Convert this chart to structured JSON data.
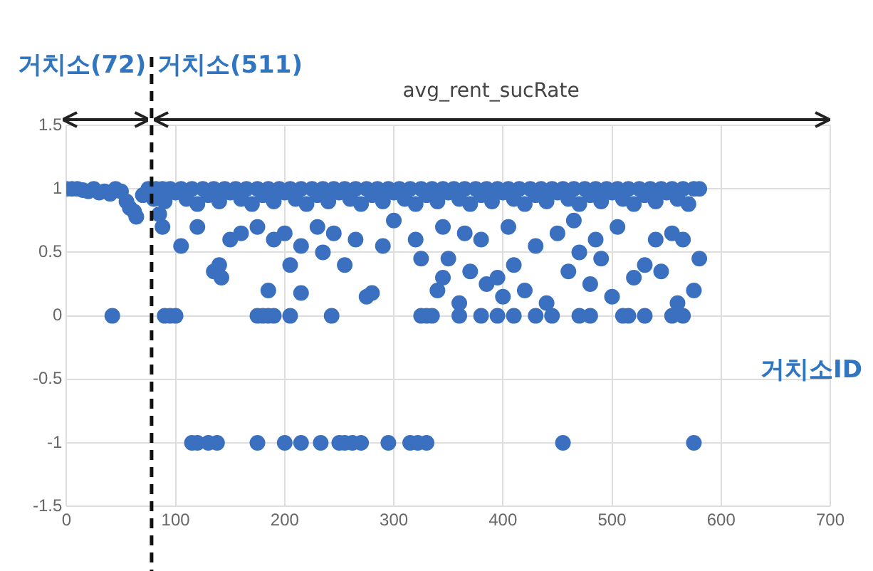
{
  "chart_data": {
    "type": "scatter",
    "xlabel": "거치소ID",
    "annotations": [
      "거치소(72)",
      "거치소(511)",
      "avg_rent_sucRate"
    ],
    "x": [
      0,
      5,
      10,
      15,
      20,
      25,
      30,
      35,
      40,
      45,
      50,
      55,
      58,
      62,
      64,
      70,
      75,
      42,
      80,
      82,
      85,
      88,
      90,
      95,
      100,
      105,
      110,
      115,
      120,
      125,
      130,
      135,
      140,
      145,
      150,
      155,
      160,
      165,
      170,
      175,
      180,
      185,
      190,
      195,
      200,
      205,
      210,
      215,
      220,
      225,
      230,
      235,
      240,
      245,
      250,
      255,
      260,
      265,
      270,
      275,
      280,
      285,
      290,
      295,
      300,
      305,
      310,
      315,
      320,
      325,
      330,
      335,
      340,
      345,
      350,
      355,
      360,
      365,
      370,
      375,
      380,
      385,
      390,
      395,
      400,
      405,
      410,
      415,
      420,
      425,
      430,
      435,
      440,
      445,
      450,
      455,
      460,
      465,
      470,
      475,
      480,
      485,
      490,
      495,
      500,
      505,
      510,
      515,
      520,
      525,
      530,
      535,
      540,
      545,
      550,
      555,
      560,
      565,
      570,
      575,
      580,
      90,
      95,
      100,
      175,
      180,
      185,
      190,
      205,
      243,
      325,
      330,
      335,
      360,
      380,
      395,
      410,
      430,
      445,
      470,
      480,
      510,
      515,
      530,
      555,
      565,
      115,
      120,
      130,
      138,
      175,
      200,
      215,
      233,
      250,
      255,
      262,
      270,
      295,
      315,
      322,
      330,
      455,
      575,
      135,
      140,
      142,
      185,
      205,
      215,
      235,
      255,
      275,
      280,
      325,
      340,
      345,
      350,
      360,
      370,
      385,
      395,
      400,
      410,
      420,
      440,
      460,
      470,
      480,
      490,
      500,
      520,
      530,
      545,
      560,
      575,
      580,
      88,
      105,
      120,
      150,
      160,
      175,
      190,
      200,
      215,
      230,
      245,
      265,
      290,
      300,
      320,
      345,
      365,
      380,
      405,
      430,
      450,
      465,
      485,
      505,
      540,
      555,
      565
    ],
    "values": [
      1,
      1,
      1,
      0.99,
      0.98,
      1,
      0.97,
      0.98,
      0.96,
      1,
      0.98,
      0.9,
      0.85,
      0.82,
      0.78,
      0.95,
      1,
      0,
      0.92,
      1,
      0.8,
      1,
      0.9,
      1,
      0.97,
      1,
      0.92,
      1,
      0.88,
      1,
      0.95,
      1,
      0.9,
      1,
      0.97,
      1,
      0.92,
      1,
      0.88,
      1,
      0.95,
      1,
      0.9,
      1,
      0.97,
      1,
      0.92,
      1,
      0.88,
      1,
      0.95,
      1,
      0.9,
      1,
      0.97,
      1,
      0.92,
      1,
      0.88,
      1,
      0.95,
      1,
      0.9,
      1,
      0.97,
      1,
      0.92,
      1,
      0.88,
      1,
      0.95,
      1,
      0.9,
      1,
      0.97,
      1,
      0.92,
      1,
      0.88,
      1,
      0.95,
      1,
      0.9,
      1,
      0.97,
      1,
      0.92,
      1,
      0.88,
      1,
      0.95,
      1,
      0.9,
      1,
      0.97,
      1,
      0.92,
      1,
      0.88,
      1,
      0.95,
      1,
      0.9,
      1,
      0.97,
      1,
      0.92,
      1,
      0.88,
      1,
      0.95,
      1,
      0.9,
      1,
      0.97,
      1,
      0.92,
      1,
      0.88,
      1,
      1,
      0,
      0,
      0,
      0,
      0,
      0,
      0,
      0,
      0,
      0,
      0,
      0,
      0,
      0,
      0,
      0,
      0,
      0,
      0,
      0,
      0,
      0,
      0,
      0,
      0,
      -1,
      -1,
      -1,
      -1,
      -1,
      -1,
      -1,
      -1,
      -1,
      -1,
      -1,
      -1,
      -1,
      -1,
      -1,
      -1,
      -1,
      -1,
      0.35,
      0.4,
      0.3,
      0.2,
      0.4,
      0.18,
      0.5,
      0.4,
      0.15,
      0.18,
      0.45,
      0.2,
      0.3,
      0.45,
      0.1,
      0.35,
      0.25,
      0.3,
      0.15,
      0.4,
      0.2,
      0.1,
      0.35,
      0.5,
      0.25,
      0.45,
      0.15,
      0.3,
      0.4,
      0.35,
      0.1,
      0.2,
      0.45,
      0.7,
      0.55,
      0.7,
      0.6,
      0.65,
      0.7,
      0.6,
      0.65,
      0.55,
      0.7,
      0.65,
      0.6,
      0.55,
      0.75,
      0.6,
      0.7,
      0.65,
      0.6,
      0.7,
      0.55,
      0.65,
      0.75,
      0.6,
      0.7,
      0.6,
      0.65,
      0.6
    ],
    "color": "#3a70bf",
    "marker": "circle",
    "grid": true,
    "xlim": [
      0,
      700
    ],
    "xticks": [
      0,
      100,
      200,
      300,
      400,
      500,
      600,
      700
    ],
    "ylim": [
      -1.5,
      1.5
    ],
    "yticks": [
      -1.5,
      -1,
      -0.5,
      0,
      0.5,
      1,
      1.5
    ],
    "ref_lines": [
      {
        "axis": "x",
        "value": 78,
        "line_style": "dashed",
        "color": "#111111"
      }
    ]
  }
}
